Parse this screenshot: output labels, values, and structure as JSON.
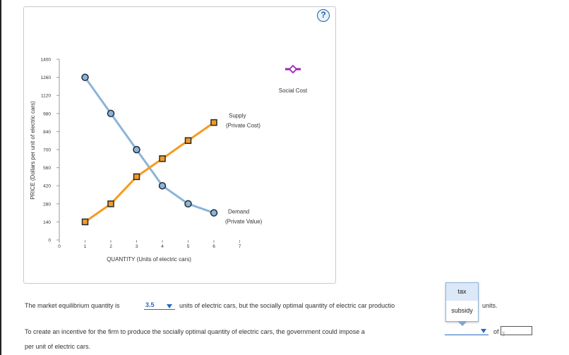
{
  "help_button": {
    "label": "?"
  },
  "chart_data": {
    "type": "line",
    "xlabel": "QUANTITY (Units of electric cars)",
    "ylabel": "PRICE (Dollars per unit of electric cars)",
    "xlim": [
      0,
      7
    ],
    "ylim": [
      0,
      1400
    ],
    "x_ticks": [
      "0",
      "1",
      "2",
      "3",
      "4",
      "5",
      "6",
      "7"
    ],
    "y_ticks": [
      "0",
      "140",
      "280",
      "420",
      "560",
      "700",
      "840",
      "980",
      "1120",
      "1260",
      "1400"
    ],
    "series": [
      {
        "name": "Demand (Private Value)",
        "label_lines": [
          "Demand",
          "(Private Value)"
        ],
        "color": "#8cb4d8",
        "marker": "circle",
        "x": [
          1,
          2,
          3,
          4,
          5,
          6
        ],
        "y": [
          1260,
          980,
          700,
          420,
          280,
          210
        ]
      },
      {
        "name": "Supply (Private Cost)",
        "label_lines": [
          "Supply",
          "(Private Cost)"
        ],
        "color": "#f79a1e",
        "marker": "square",
        "x": [
          1,
          2,
          3,
          4,
          5,
          6
        ],
        "y": [
          140,
          280,
          490,
          630,
          770,
          910
        ]
      }
    ],
    "legend_tool": {
      "name": "Social Cost",
      "color": "#9b26b6",
      "marker": "diamond"
    }
  },
  "question": {
    "line1_before": "The market equilibrium quantity is",
    "equilibrium_answer": "3.5",
    "line1_after": "units of electric cars, but the socially optimal quantity of electric car productio",
    "line1_end": "units.",
    "line2_before": "To create an incentive for the firm to produce the socially optimal quantity of electric cars, the government could impose a",
    "line2_after": "of",
    "line3": "per unit of electric cars.",
    "policy_options": [
      "tax",
      "subsidy"
    ],
    "amount_placeholder": "$"
  },
  "colors": {
    "accent": "#2a6bbf",
    "demand": "#8cb4d8",
    "supply": "#f79a1e",
    "social_cost": "#9b26b6"
  }
}
